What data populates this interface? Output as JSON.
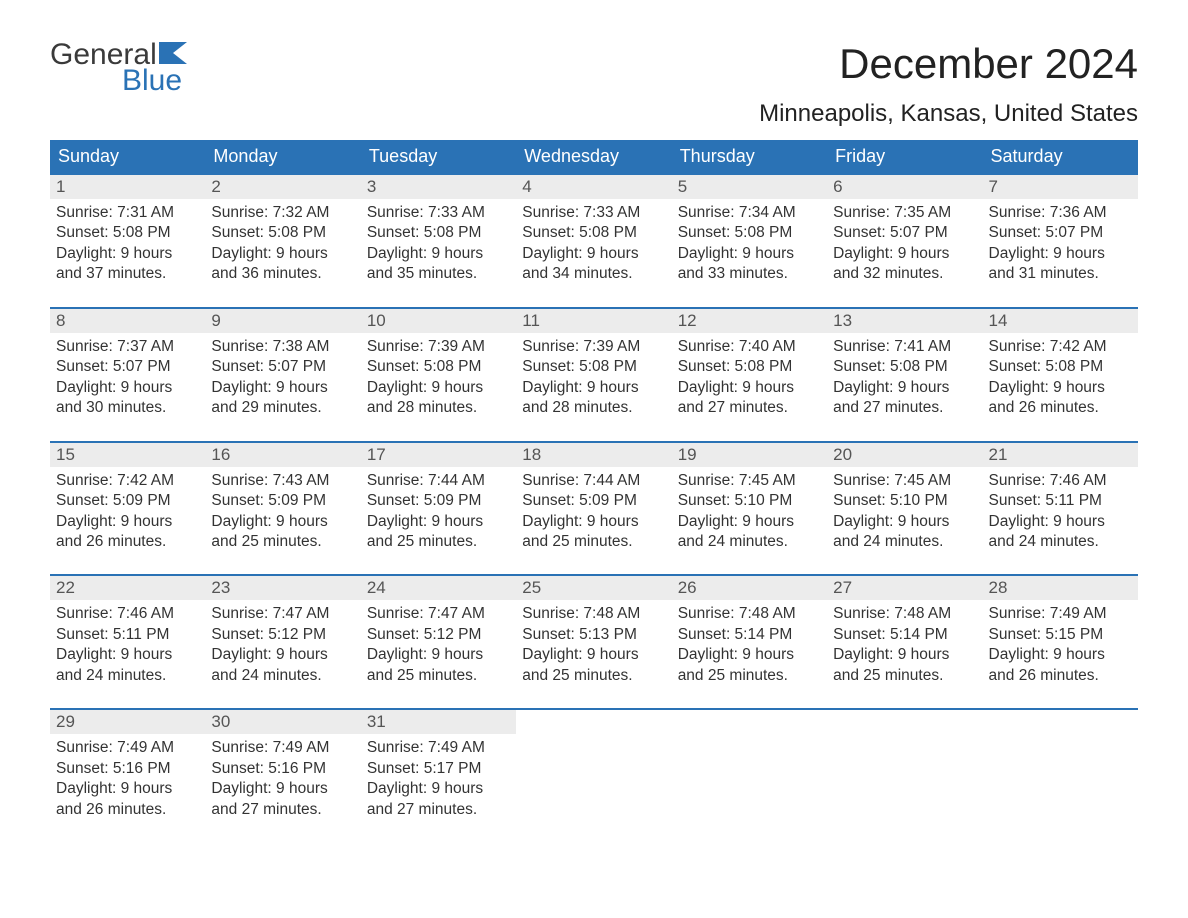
{
  "logo": {
    "word1": "General",
    "word2": "Blue",
    "flag_color": "#2a72b5"
  },
  "title": "December 2024",
  "location": "Minneapolis, Kansas, United States",
  "colors": {
    "header_bg": "#2a72b5",
    "header_text": "#ffffff",
    "daynum_bg": "#ececec",
    "week_border": "#2a72b5",
    "body_text": "#333333"
  },
  "weekdays": [
    "Sunday",
    "Monday",
    "Tuesday",
    "Wednesday",
    "Thursday",
    "Friday",
    "Saturday"
  ],
  "weeks": [
    [
      {
        "n": "1",
        "sunrise": "Sunrise: 7:31 AM",
        "sunset": "Sunset: 5:08 PM",
        "d1": "Daylight: 9 hours",
        "d2": "and 37 minutes."
      },
      {
        "n": "2",
        "sunrise": "Sunrise: 7:32 AM",
        "sunset": "Sunset: 5:08 PM",
        "d1": "Daylight: 9 hours",
        "d2": "and 36 minutes."
      },
      {
        "n": "3",
        "sunrise": "Sunrise: 7:33 AM",
        "sunset": "Sunset: 5:08 PM",
        "d1": "Daylight: 9 hours",
        "d2": "and 35 minutes."
      },
      {
        "n": "4",
        "sunrise": "Sunrise: 7:33 AM",
        "sunset": "Sunset: 5:08 PM",
        "d1": "Daylight: 9 hours",
        "d2": "and 34 minutes."
      },
      {
        "n": "5",
        "sunrise": "Sunrise: 7:34 AM",
        "sunset": "Sunset: 5:08 PM",
        "d1": "Daylight: 9 hours",
        "d2": "and 33 minutes."
      },
      {
        "n": "6",
        "sunrise": "Sunrise: 7:35 AM",
        "sunset": "Sunset: 5:07 PM",
        "d1": "Daylight: 9 hours",
        "d2": "and 32 minutes."
      },
      {
        "n": "7",
        "sunrise": "Sunrise: 7:36 AM",
        "sunset": "Sunset: 5:07 PM",
        "d1": "Daylight: 9 hours",
        "d2": "and 31 minutes."
      }
    ],
    [
      {
        "n": "8",
        "sunrise": "Sunrise: 7:37 AM",
        "sunset": "Sunset: 5:07 PM",
        "d1": "Daylight: 9 hours",
        "d2": "and 30 minutes."
      },
      {
        "n": "9",
        "sunrise": "Sunrise: 7:38 AM",
        "sunset": "Sunset: 5:07 PM",
        "d1": "Daylight: 9 hours",
        "d2": "and 29 minutes."
      },
      {
        "n": "10",
        "sunrise": "Sunrise: 7:39 AM",
        "sunset": "Sunset: 5:08 PM",
        "d1": "Daylight: 9 hours",
        "d2": "and 28 minutes."
      },
      {
        "n": "11",
        "sunrise": "Sunrise: 7:39 AM",
        "sunset": "Sunset: 5:08 PM",
        "d1": "Daylight: 9 hours",
        "d2": "and 28 minutes."
      },
      {
        "n": "12",
        "sunrise": "Sunrise: 7:40 AM",
        "sunset": "Sunset: 5:08 PM",
        "d1": "Daylight: 9 hours",
        "d2": "and 27 minutes."
      },
      {
        "n": "13",
        "sunrise": "Sunrise: 7:41 AM",
        "sunset": "Sunset: 5:08 PM",
        "d1": "Daylight: 9 hours",
        "d2": "and 27 minutes."
      },
      {
        "n": "14",
        "sunrise": "Sunrise: 7:42 AM",
        "sunset": "Sunset: 5:08 PM",
        "d1": "Daylight: 9 hours",
        "d2": "and 26 minutes."
      }
    ],
    [
      {
        "n": "15",
        "sunrise": "Sunrise: 7:42 AM",
        "sunset": "Sunset: 5:09 PM",
        "d1": "Daylight: 9 hours",
        "d2": "and 26 minutes."
      },
      {
        "n": "16",
        "sunrise": "Sunrise: 7:43 AM",
        "sunset": "Sunset: 5:09 PM",
        "d1": "Daylight: 9 hours",
        "d2": "and 25 minutes."
      },
      {
        "n": "17",
        "sunrise": "Sunrise: 7:44 AM",
        "sunset": "Sunset: 5:09 PM",
        "d1": "Daylight: 9 hours",
        "d2": "and 25 minutes."
      },
      {
        "n": "18",
        "sunrise": "Sunrise: 7:44 AM",
        "sunset": "Sunset: 5:09 PM",
        "d1": "Daylight: 9 hours",
        "d2": "and 25 minutes."
      },
      {
        "n": "19",
        "sunrise": "Sunrise: 7:45 AM",
        "sunset": "Sunset: 5:10 PM",
        "d1": "Daylight: 9 hours",
        "d2": "and 24 minutes."
      },
      {
        "n": "20",
        "sunrise": "Sunrise: 7:45 AM",
        "sunset": "Sunset: 5:10 PM",
        "d1": "Daylight: 9 hours",
        "d2": "and 24 minutes."
      },
      {
        "n": "21",
        "sunrise": "Sunrise: 7:46 AM",
        "sunset": "Sunset: 5:11 PM",
        "d1": "Daylight: 9 hours",
        "d2": "and 24 minutes."
      }
    ],
    [
      {
        "n": "22",
        "sunrise": "Sunrise: 7:46 AM",
        "sunset": "Sunset: 5:11 PM",
        "d1": "Daylight: 9 hours",
        "d2": "and 24 minutes."
      },
      {
        "n": "23",
        "sunrise": "Sunrise: 7:47 AM",
        "sunset": "Sunset: 5:12 PM",
        "d1": "Daylight: 9 hours",
        "d2": "and 24 minutes."
      },
      {
        "n": "24",
        "sunrise": "Sunrise: 7:47 AM",
        "sunset": "Sunset: 5:12 PM",
        "d1": "Daylight: 9 hours",
        "d2": "and 25 minutes."
      },
      {
        "n": "25",
        "sunrise": "Sunrise: 7:48 AM",
        "sunset": "Sunset: 5:13 PM",
        "d1": "Daylight: 9 hours",
        "d2": "and 25 minutes."
      },
      {
        "n": "26",
        "sunrise": "Sunrise: 7:48 AM",
        "sunset": "Sunset: 5:14 PM",
        "d1": "Daylight: 9 hours",
        "d2": "and 25 minutes."
      },
      {
        "n": "27",
        "sunrise": "Sunrise: 7:48 AM",
        "sunset": "Sunset: 5:14 PM",
        "d1": "Daylight: 9 hours",
        "d2": "and 25 minutes."
      },
      {
        "n": "28",
        "sunrise": "Sunrise: 7:49 AM",
        "sunset": "Sunset: 5:15 PM",
        "d1": "Daylight: 9 hours",
        "d2": "and 26 minutes."
      }
    ],
    [
      {
        "n": "29",
        "sunrise": "Sunrise: 7:49 AM",
        "sunset": "Sunset: 5:16 PM",
        "d1": "Daylight: 9 hours",
        "d2": "and 26 minutes."
      },
      {
        "n": "30",
        "sunrise": "Sunrise: 7:49 AM",
        "sunset": "Sunset: 5:16 PM",
        "d1": "Daylight: 9 hours",
        "d2": "and 27 minutes."
      },
      {
        "n": "31",
        "sunrise": "Sunrise: 7:49 AM",
        "sunset": "Sunset: 5:17 PM",
        "d1": "Daylight: 9 hours",
        "d2": "and 27 minutes."
      },
      {
        "empty": true
      },
      {
        "empty": true
      },
      {
        "empty": true
      },
      {
        "empty": true
      }
    ]
  ]
}
